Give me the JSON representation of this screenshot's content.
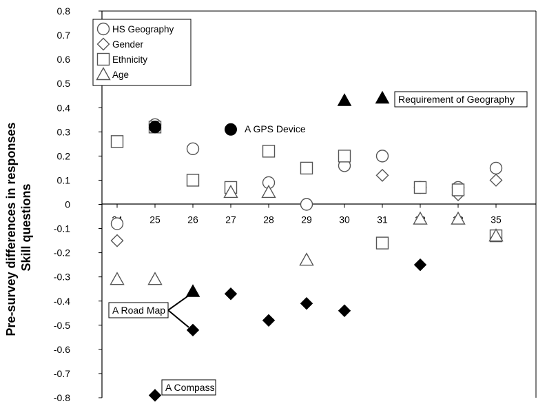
{
  "chart_data": {
    "type": "scatter",
    "ylabel_lines": [
      "Pre-survey differences in responses",
      "Skill questions"
    ],
    "ylim": [
      -0.8,
      0.8
    ],
    "yticks": [
      "0.8",
      "0.7",
      "0.6",
      "0.5",
      "0.4",
      "0.3",
      "0.2",
      "0.1",
      "0",
      "-0.1",
      "-0.2",
      "-0.3",
      "-0.4",
      "-0.5",
      "-0.6",
      "-0.7",
      "-0.8"
    ],
    "x_categories": [
      "24",
      "25",
      "26",
      "27",
      "28",
      "29",
      "30",
      "31",
      "32",
      "33",
      "35"
    ],
    "legend": [
      {
        "name": "HS Geography",
        "marker": "circle"
      },
      {
        "name": "Gender",
        "marker": "diamond"
      },
      {
        "name": "Ethnicity",
        "marker": "square"
      },
      {
        "name": "Age",
        "marker": "triangle"
      }
    ],
    "series": [
      {
        "name": "HS Geography",
        "marker": "circle",
        "points": [
          [
            "24",
            -0.08
          ],
          [
            "25",
            0.33
          ],
          [
            "26",
            0.23
          ],
          [
            "28",
            0.09
          ],
          [
            "29",
            0.0
          ],
          [
            "30",
            0.16
          ],
          [
            "31",
            0.2
          ],
          [
            "32",
            0.07
          ],
          [
            "33",
            0.07
          ],
          [
            "35",
            0.15
          ]
        ]
      },
      {
        "name": "Gender",
        "marker": "diamond",
        "points": [
          [
            "24",
            -0.15
          ],
          [
            "25",
            0.32
          ],
          [
            "31",
            0.12
          ],
          [
            "32",
            0.07
          ],
          [
            "33",
            0.04
          ],
          [
            "35",
            0.1
          ]
        ]
      },
      {
        "name": "Ethnicity",
        "marker": "square",
        "points": [
          [
            "24",
            0.26
          ],
          [
            "25",
            0.32
          ],
          [
            "26",
            0.1
          ],
          [
            "27",
            0.07
          ],
          [
            "28",
            0.22
          ],
          [
            "29",
            0.15
          ],
          [
            "30",
            0.2
          ],
          [
            "31",
            -0.16
          ],
          [
            "32",
            0.07
          ],
          [
            "33",
            0.06
          ],
          [
            "35",
            -0.13
          ]
        ]
      },
      {
        "name": "Age",
        "marker": "triangle",
        "points": [
          [
            "24",
            -0.31
          ],
          [
            "25",
            -0.31
          ],
          [
            "27",
            0.05
          ],
          [
            "28",
            0.05
          ],
          [
            "29",
            -0.23
          ],
          [
            "32",
            -0.06
          ],
          [
            "33",
            -0.06
          ],
          [
            "35",
            -0.13
          ]
        ]
      }
    ],
    "highlighted": [
      {
        "marker": "circle-filled",
        "points": [
          [
            "25",
            0.32
          ],
          [
            "27",
            0.31
          ]
        ]
      },
      {
        "marker": "triangle-filled",
        "points": [
          [
            "26",
            -0.36
          ],
          [
            "30",
            0.43
          ],
          [
            "31",
            0.44
          ]
        ]
      },
      {
        "marker": "diamond-filled",
        "points": [
          [
            "25",
            -0.79
          ],
          [
            "26",
            -0.52
          ],
          [
            "27",
            -0.37
          ],
          [
            "28",
            -0.48
          ],
          [
            "29",
            -0.41
          ],
          [
            "30",
            -0.44
          ],
          [
            "32",
            -0.25
          ]
        ]
      }
    ],
    "annotations": [
      {
        "text": "Requirement of Geography",
        "boxed": true
      },
      {
        "text": "A GPS Device",
        "boxed": false
      },
      {
        "text": "A Road Map",
        "boxed": true
      },
      {
        "text": "A Compass",
        "boxed": true
      }
    ],
    "grid": false,
    "legend_position": "top-left"
  }
}
